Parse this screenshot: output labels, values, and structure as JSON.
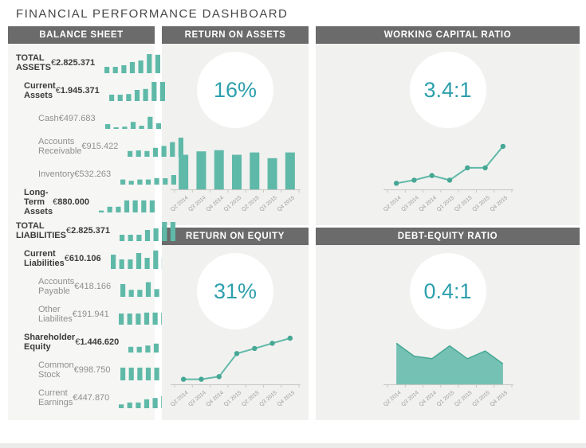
{
  "title": "FINANCIAL PERFORMANCE DASHBOARD",
  "colors": {
    "teal": "#5fb9a8",
    "teal_dark": "#45a794",
    "accent_text": "#2d9fad",
    "header_bg": "#6b6b6b",
    "panel_bg": "#f1f1ef",
    "balance_bg": "#f6f6f4",
    "axis": "#c7c7c4",
    "label_gray": "#9b9b99"
  },
  "chart_data": [
    {
      "type": "bar",
      "title": "RETURN ON ASSETS",
      "kpi": "16%",
      "categories": [
        "Q2 2014",
        "Q3 2014",
        "Q4 2014",
        "Q1 2015",
        "Q2 2015",
        "Q3 2015",
        "Q4 2015"
      ],
      "values": [
        15,
        16.5,
        17,
        15,
        16,
        13.5,
        16
      ],
      "ylim": [
        0,
        20
      ],
      "xlabel": "",
      "ylabel": "",
      "grid": false,
      "legend": "none"
    },
    {
      "type": "line",
      "title": "WORKING CAPITAL RATIO",
      "kpi": "3.4:1",
      "categories": [
        "Q2 2014",
        "Q3 2014",
        "Q4 2014",
        "Q1 2015",
        "Q2 2015",
        "Q3 2015",
        "Q4 2015"
      ],
      "values": [
        2.2,
        2.3,
        2.45,
        2.3,
        2.7,
        2.7,
        3.4
      ],
      "ylim": [
        2.0,
        3.5
      ],
      "xlabel": "",
      "ylabel": "",
      "grid": false,
      "legend": "none"
    },
    {
      "type": "line",
      "title": "RETURN ON EQUITY",
      "kpi": "31%",
      "categories": [
        "Q2 2014",
        "Q3 2014",
        "Q4 2014",
        "Q1 2015",
        "Q2 2015",
        "Q3 2015",
        "Q4 2015"
      ],
      "values": [
        15,
        15,
        16,
        25,
        27,
        29,
        31
      ],
      "ylim": [
        13,
        31
      ],
      "xlabel": "",
      "ylabel": "",
      "grid": false,
      "legend": "none"
    },
    {
      "type": "area",
      "title": "DEBT-EQUITY RATIO",
      "kpi": "0.4:1",
      "categories": [
        "Q2 2014",
        "Q3 2014",
        "Q4 2014",
        "Q1 2015",
        "Q2 2015",
        "Q3 2015",
        "Q4 2015"
      ],
      "values": [
        0.8,
        0.55,
        0.5,
        0.75,
        0.5,
        0.65,
        0.4
      ],
      "ylim": [
        0,
        0.9
      ],
      "xlabel": "",
      "ylabel": "",
      "grid": false,
      "legend": "none"
    }
  ],
  "balance_sheet": {
    "header": "BALANCE SHEET",
    "spark_type": "bar",
    "rows": [
      {
        "label": "TOTAL ASSETS",
        "currency": "€",
        "value": "2.825.371",
        "indent": 0,
        "emphasis": "total",
        "spark_values": [
          2,
          2,
          2.5,
          3.5,
          4,
          6,
          5.8
        ]
      },
      {
        "label": "Current Assets",
        "currency": "€",
        "value": "1.945.371",
        "indent": 1,
        "emphasis": "strong",
        "spark_values": [
          2,
          2,
          2.2,
          3.5,
          3.8,
          6,
          6
        ]
      },
      {
        "label": "Cash",
        "currency": "€",
        "value": "497.683",
        "indent": 2,
        "emphasis": "normal",
        "spark_values": [
          1.5,
          0.5,
          0.7,
          2.2,
          1,
          3.8,
          1.8
        ]
      },
      {
        "label": "Accounts Receivable",
        "currency": "€",
        "value": "915.422",
        "indent": 2,
        "emphasis": "normal",
        "spark_values": [
          1.8,
          2,
          1.8,
          2.8,
          3.4,
          4.6,
          6
        ]
      },
      {
        "label": "Inventory",
        "currency": "€",
        "value": "532.263",
        "indent": 2,
        "emphasis": "normal",
        "spark_values": [
          1.6,
          1.2,
          1.6,
          1.6,
          2,
          2,
          3
        ]
      },
      {
        "label": "Long-Term Assets",
        "currency": "€",
        "value": "880.000",
        "indent": 1,
        "emphasis": "strong",
        "spark_values": [
          0.6,
          1.8,
          1.8,
          3.8,
          3.8,
          3.8,
          3.8
        ]
      },
      {
        "label": "TOTAL LIABILITIES",
        "currency": "€",
        "value": "2.825.371",
        "indent": 0,
        "emphasis": "total",
        "spark_values": [
          2,
          2,
          2,
          3.5,
          4,
          6,
          6
        ]
      },
      {
        "label": "Current Liabilities",
        "currency": "€",
        "value": "610.106",
        "indent": 1,
        "emphasis": "strong",
        "spark_values": [
          4.5,
          3,
          3,
          5,
          3.5,
          5.8,
          3.5
        ]
      },
      {
        "label": "Accounts Payable",
        "currency": "€",
        "value": "418.166",
        "indent": 2,
        "emphasis": "normal",
        "spark_values": [
          4,
          2.2,
          2.2,
          4.6,
          2.4,
          4.6,
          2.4
        ]
      },
      {
        "label": "Other Liabilites",
        "currency": "€",
        "value": "191.941",
        "indent": 2,
        "emphasis": "normal",
        "spark_values": [
          3.5,
          3.5,
          3.5,
          3.8,
          3.8,
          3.8,
          3.8
        ]
      },
      {
        "label": "Shareholder Equity",
        "currency": "€",
        "value": "1.446.620",
        "indent": 1,
        "emphasis": "strong",
        "spark_values": [
          1.8,
          1.8,
          2.2,
          2.8,
          3.2,
          3.8,
          4.2
        ]
      },
      {
        "label": "Common Stock",
        "currency": "€",
        "value": "998.750",
        "indent": 2,
        "emphasis": "normal",
        "spark_values": [
          4,
          4,
          4,
          4,
          4,
          4.4,
          5
        ]
      },
      {
        "label": "Current Earnings",
        "currency": "€",
        "value": "447.870",
        "indent": 2,
        "emphasis": "normal",
        "spark_values": [
          1.2,
          1.8,
          1.8,
          2.8,
          3.2,
          3.8,
          5
        ]
      }
    ]
  }
}
